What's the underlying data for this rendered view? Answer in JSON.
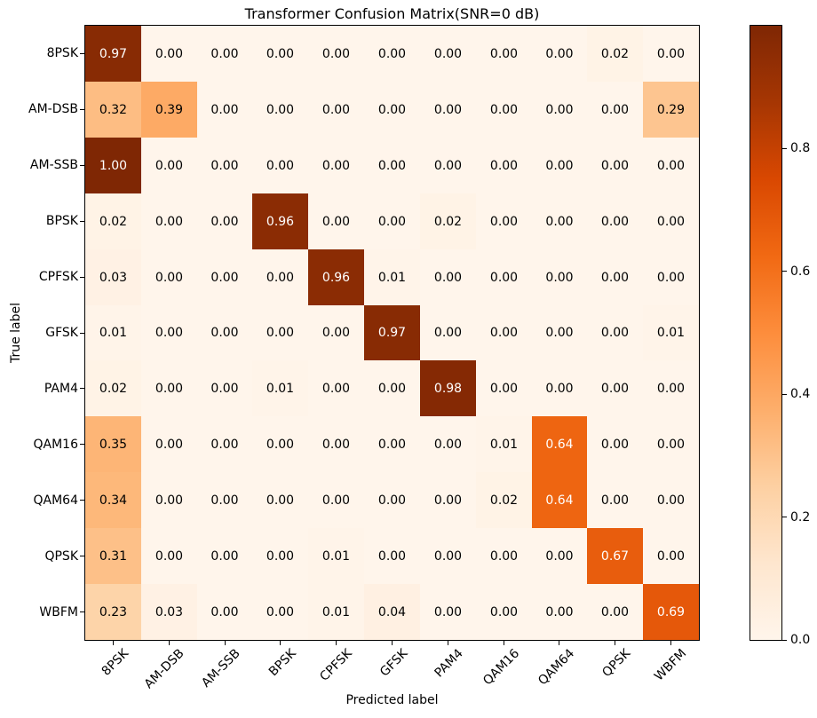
{
  "chart_data": {
    "type": "heatmap",
    "title": "Transformer Confusion Matrix(SNR=0 dB)",
    "xlabel": "Predicted label",
    "ylabel": "True label",
    "categories": [
      "8PSK",
      "AM-DSB",
      "AM-SSB",
      "BPSK",
      "CPFSK",
      "GFSK",
      "PAM4",
      "QAM16",
      "QAM64",
      "QPSK",
      "WBFM"
    ],
    "rows": [
      [
        0.97,
        0.0,
        0.0,
        0.0,
        0.0,
        0.0,
        0.0,
        0.0,
        0.0,
        0.02,
        0.0
      ],
      [
        0.32,
        0.39,
        0.0,
        0.0,
        0.0,
        0.0,
        0.0,
        0.0,
        0.0,
        0.0,
        0.29
      ],
      [
        1.0,
        0.0,
        0.0,
        0.0,
        0.0,
        0.0,
        0.0,
        0.0,
        0.0,
        0.0,
        0.0
      ],
      [
        0.02,
        0.0,
        0.0,
        0.96,
        0.0,
        0.0,
        0.02,
        0.0,
        0.0,
        0.0,
        0.0
      ],
      [
        0.03,
        0.0,
        0.0,
        0.0,
        0.96,
        0.01,
        0.0,
        0.0,
        0.0,
        0.0,
        0.0
      ],
      [
        0.01,
        0.0,
        0.0,
        0.0,
        0.0,
        0.97,
        0.0,
        0.0,
        0.0,
        0.0,
        0.01
      ],
      [
        0.02,
        0.0,
        0.0,
        0.01,
        0.0,
        0.0,
        0.98,
        0.0,
        0.0,
        0.0,
        0.0
      ],
      [
        0.35,
        0.0,
        0.0,
        0.0,
        0.0,
        0.0,
        0.0,
        0.01,
        0.64,
        0.0,
        0.0
      ],
      [
        0.34,
        0.0,
        0.0,
        0.0,
        0.0,
        0.0,
        0.0,
        0.02,
        0.64,
        0.0,
        0.0
      ],
      [
        0.31,
        0.0,
        0.0,
        0.0,
        0.01,
        0.0,
        0.0,
        0.0,
        0.0,
        0.67,
        0.0
      ],
      [
        0.23,
        0.03,
        0.0,
        0.0,
        0.01,
        0.04,
        0.0,
        0.0,
        0.0,
        0.0,
        0.69
      ]
    ],
    "value_decimals": 2,
    "vmin": 0.0,
    "vmax": 1.0,
    "colormap": "Oranges",
    "colormap_stops": [
      "#fff5eb",
      "#fee6ce",
      "#fdd0a2",
      "#fdae6b",
      "#fd8d3c",
      "#f16913",
      "#d94801",
      "#a63603",
      "#7f2704"
    ],
    "cell_text_color_low": "#000000",
    "cell_text_color_high": "#ffffff",
    "cell_text_threshold": 0.5,
    "colorbar_ticks": [
      {
        "value": 0.0,
        "label": "0.0"
      },
      {
        "value": 0.2,
        "label": "0.2"
      },
      {
        "value": 0.4,
        "label": "0.4"
      },
      {
        "value": 0.6,
        "label": "0.6"
      },
      {
        "value": 0.8,
        "label": "0.8"
      }
    ],
    "grid": false,
    "legend_position": "colorbar-right"
  }
}
